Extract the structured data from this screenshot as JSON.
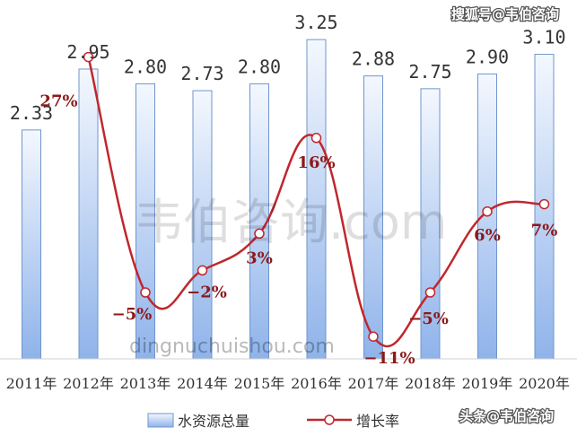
{
  "chart_data": {
    "type": "bar",
    "categories": [
      "2011年",
      "2012年",
      "2013年",
      "2014年",
      "2015年",
      "2016年",
      "2017年",
      "2018年",
      "2019年",
      "2020年"
    ],
    "series": [
      {
        "name": "水资源总量",
        "type": "bar",
        "values": [
          2.33,
          2.95,
          2.8,
          2.73,
          2.8,
          3.25,
          2.88,
          2.75,
          2.9,
          3.1
        ],
        "labels": [
          "2.33",
          "2.95",
          "2.80",
          "2.73",
          "2.80",
          "3.25",
          "2.88",
          "2.75",
          "2.90",
          "3.10"
        ]
      },
      {
        "name": "增长率",
        "type": "line",
        "values": [
          null,
          27,
          -5,
          -2,
          3,
          16,
          -11,
          -5,
          6,
          7
        ],
        "labels": [
          "",
          "27%",
          "−5%",
          "−2%",
          "3%",
          "16%",
          "−11%",
          "−5%",
          "6%",
          "7%"
        ]
      }
    ],
    "legend_position": "bottom",
    "colors": {
      "bar_fill_top": "#f4f8fe",
      "bar_fill_bottom": "#8fb3ea",
      "bar_stroke": "#6f95cf",
      "line": "#c0272d",
      "rate_label": "#8b1a1a"
    }
  },
  "watermarks": {
    "center": "韦伯咨询.com",
    "domain": "dingnuchuishou.com",
    "top_credit": "搜狐号@韦伯咨询",
    "bottom_credit": "头条@韦伯咨询"
  }
}
